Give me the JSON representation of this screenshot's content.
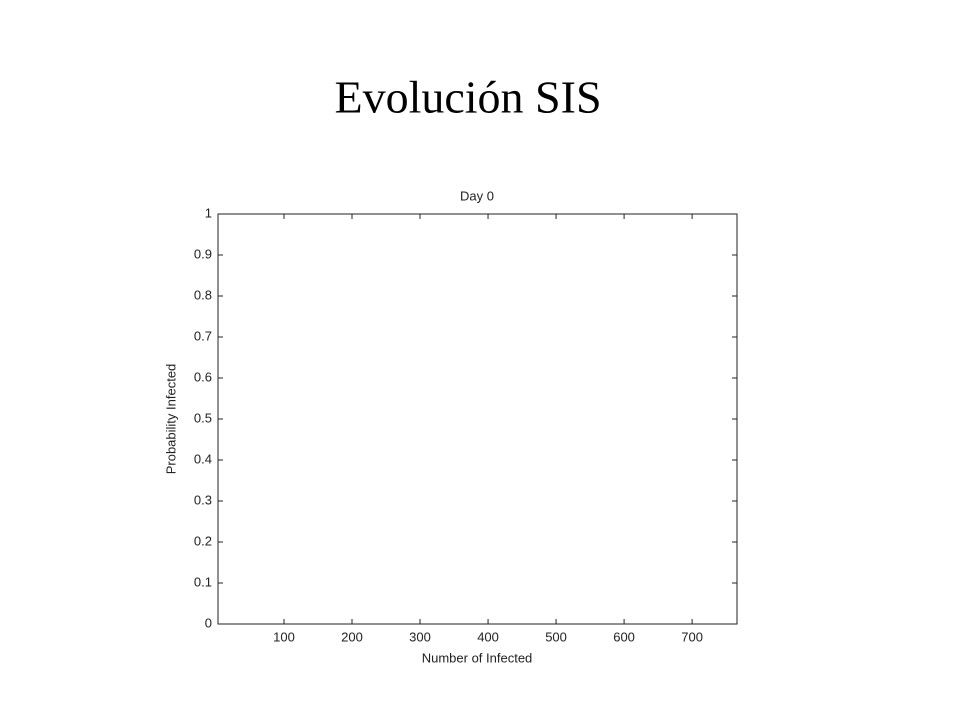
{
  "slide_title": "Evolución SIS",
  "chart_data": {
    "type": "line",
    "title": "Day 0",
    "x_label": "Number of Infected",
    "y_label": "Probability Infected",
    "xlim": [
      3,
      766
    ],
    "xticks": [
      100,
      200,
      300,
      400,
      500,
      600,
      700
    ],
    "ylim": [
      0,
      1
    ],
    "yticks": [
      0,
      0.1,
      0.2,
      0.3,
      0.4,
      0.5,
      0.6,
      0.7,
      0.8,
      0.9,
      1
    ]
  }
}
